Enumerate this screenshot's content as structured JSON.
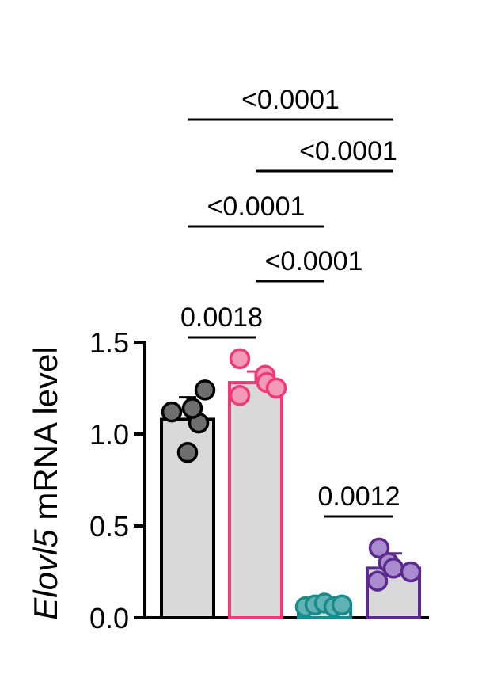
{
  "chart_data": {
    "type": "bar",
    "ylabel_italic": "Elovl5",
    "ylabel_rest": " mRNA level",
    "ylim": [
      0,
      1.5
    ],
    "yticks": [
      "0.0",
      "0.5",
      "1.0",
      "1.5"
    ],
    "ytick_values": [
      0,
      0.5,
      1.0,
      1.5
    ],
    "bars": [
      {
        "mean": 1.08,
        "sd": 0.12,
        "edge": "#000000",
        "fill": "#d9d9d9",
        "dot": "#6e6e6e",
        "points": [
          1.12,
          1.24,
          1.06,
          0.9,
          1.14
        ]
      },
      {
        "mean": 1.28,
        "sd": 0.06,
        "edge": "#ef3a7a",
        "fill": "#d9d9d9",
        "dot": "#f29ab7",
        "points": [
          1.41,
          1.32,
          1.28,
          1.21,
          1.25
        ]
      },
      {
        "mean": 0.07,
        "sd": 0.01,
        "edge": "#1a8a8a",
        "fill": "#d9d9d9",
        "dot": "#5fb3b3",
        "points": [
          0.06,
          0.07,
          0.08,
          0.06,
          0.07
        ]
      },
      {
        "mean": 0.27,
        "sd": 0.08,
        "edge": "#5b2a8c",
        "fill": "#d9d9d9",
        "dot": "#a98bcf",
        "points": [
          0.38,
          0.3,
          0.27,
          0.2,
          0.25
        ]
      }
    ],
    "comparisons": [
      {
        "from": 0,
        "to": 1,
        "label": "0.0018"
      },
      {
        "from": 2,
        "to": 3,
        "label": "0.0012"
      },
      {
        "from": 1,
        "to": 2,
        "label": "<0.0001"
      },
      {
        "from": 0,
        "to": 2,
        "label": "<0.0001"
      },
      {
        "from": 1,
        "to": 3,
        "label": "<0.0001"
      },
      {
        "from": 0,
        "to": 3,
        "label": "<0.0001"
      }
    ]
  }
}
